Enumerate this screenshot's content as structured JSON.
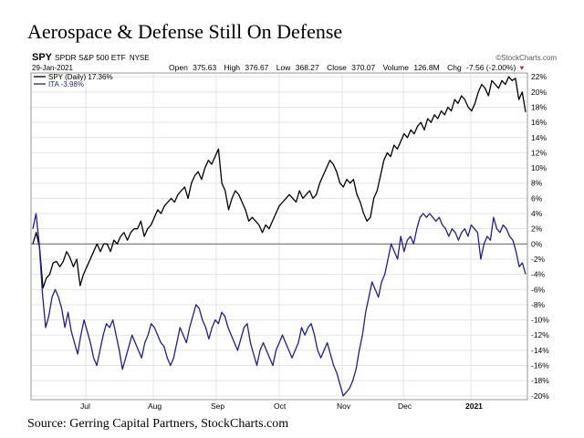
{
  "page": {
    "title": "Aerospace & Defense Still On Defense",
    "source": "Source: Gerring Capital Partners, StockCharts.com"
  },
  "header": {
    "symbol": "SPY",
    "name": "SPDR S&P 500 ETF",
    "exchange": "NYSE",
    "watermark": "©StockCharts.com",
    "date": "29-Jan-2021",
    "open_label": "Open",
    "open": "375.63",
    "high_label": "High",
    "high": "376.67",
    "low_label": "Low",
    "low": "368.27",
    "close_label": "Close",
    "close": "370.07",
    "volume_label": "Volume",
    "volume": "126.8M",
    "chg_label": "Chg",
    "chg": "-7.56 (-2.00%)",
    "chg_marker": "▾"
  },
  "legend": {
    "spy": "SPY (Daily) 17.36%",
    "ita": "ITA -3.98%"
  },
  "colors": {
    "spy": "#000000",
    "ita": "#1f1f8f",
    "grid": "#e3e3e3",
    "down": "#c0143c"
  },
  "chart_data": {
    "type": "line",
    "x_labels": [
      "Jul",
      "Aug",
      "Sep",
      "Oct",
      "Nov",
      "Dec",
      "2021"
    ],
    "y_ticks": [
      22,
      20,
      18,
      16,
      14,
      12,
      10,
      8,
      6,
      4,
      2,
      0,
      -2,
      -4,
      -6,
      -8,
      -10,
      -12,
      -14,
      -16,
      -18,
      -20
    ],
    "y_tick_labels": [
      "22%",
      "20%",
      "18%",
      "16%",
      "14%",
      "12%",
      "10%",
      "8%",
      "6%",
      "4%",
      "2%",
      "0%",
      "-2%",
      "-4%",
      "-6%",
      "-8%",
      "-10%",
      "-12%",
      "-14%",
      "-16%",
      "-18%",
      "-20%"
    ],
    "ylim": [
      -20.5,
      22.5
    ],
    "grid": true,
    "legend_position": "top-left",
    "series": [
      {
        "name": "SPY (Daily)",
        "color": "#000000",
        "values": [
          0,
          1.5,
          -0.5,
          -5.8,
          -4.5,
          -4,
          -2.5,
          -2.3,
          -3,
          -2.3,
          -1,
          -1.8,
          -3,
          -2,
          -5.5,
          -4,
          -3,
          -2,
          -1,
          0,
          -1,
          0,
          0,
          -1,
          0.5,
          0,
          1,
          1.5,
          0.5,
          1.5,
          2,
          2,
          3,
          1,
          2,
          2.5,
          3.5,
          4.5,
          4,
          5,
          5.5,
          6,
          5.5,
          6.5,
          7,
          7.5,
          6,
          8,
          9,
          9.5,
          8.5,
          10,
          11,
          10.5,
          11.5,
          12.5,
          8,
          7,
          4.5,
          6,
          7,
          6.5,
          5.5,
          4.5,
          3,
          3.5,
          3,
          2.5,
          1.5,
          2.5,
          2,
          3,
          4,
          5,
          5.5,
          6,
          6.5,
          6,
          5.5,
          7,
          6,
          6.5,
          7,
          6,
          6.5,
          8,
          9,
          10,
          11,
          10.5,
          9.5,
          8,
          7.5,
          8.5,
          8,
          8.5,
          6.5,
          5.5,
          4,
          3,
          3.5,
          6,
          7,
          9,
          11,
          12,
          11.5,
          13,
          12.5,
          13.5,
          14.5,
          14,
          15,
          14.5,
          15.5,
          16,
          15,
          16.5,
          16,
          17,
          16.5,
          17.5,
          17,
          18,
          17.5,
          19,
          18.5,
          19.5,
          19,
          18,
          17.5,
          18.5,
          20,
          21,
          20.5,
          19.5,
          21.5,
          21,
          20.5,
          21.5,
          21,
          22,
          21.5,
          21.8,
          19,
          20,
          17.36
        ]
      },
      {
        "name": "ITA",
        "color": "#1f1f8f",
        "values": [
          2,
          4,
          0,
          -6.5,
          -11,
          -9.5,
          -7,
          -6,
          -7,
          -8.5,
          -11,
          -9,
          -11.5,
          -13,
          -14.5,
          -12,
          -10,
          -11.5,
          -13,
          -15,
          -16,
          -14,
          -12,
          -10.5,
          -11,
          -10,
          -12,
          -14,
          -16.5,
          -15,
          -13.5,
          -12,
          -13,
          -14,
          -15,
          -13,
          -12,
          -10.5,
          -11,
          -12,
          -13,
          -13.5,
          -15,
          -16,
          -15,
          -13,
          -11,
          -12,
          -13,
          -11,
          -9.5,
          -8,
          -8.5,
          -10,
          -11,
          -12.5,
          -11,
          -10,
          -10.5,
          -9,
          -9.5,
          -11,
          -12,
          -13,
          -14,
          -12.5,
          -11,
          -10.5,
          -13,
          -14.5,
          -16,
          -14,
          -13,
          -14,
          -15,
          -16,
          -14,
          -13,
          -12,
          -13,
          -14,
          -15,
          -14,
          -13,
          -11,
          -12,
          -11,
          -10.5,
          -12,
          -14,
          -15,
          -14,
          -13,
          -14.5,
          -16,
          -17,
          -18.5,
          -20,
          -19.5,
          -19,
          -18,
          -16.5,
          -14,
          -12,
          -9,
          -7,
          -5,
          -6,
          -7,
          -5,
          -4,
          -2,
          0,
          -1,
          -2,
          1,
          -1,
          0.5,
          1,
          0,
          2,
          3.5,
          4,
          3.5,
          4,
          3.5,
          3,
          3.5,
          2.5,
          2,
          1,
          2,
          1.5,
          0.5,
          1.5,
          2,
          1,
          2.5,
          2,
          1.5,
          -2,
          0,
          1,
          0.5,
          3.5,
          2,
          1.5,
          2.5,
          2,
          1,
          0.5,
          -1,
          -3,
          -2.5,
          -3.98
        ]
      }
    ]
  }
}
